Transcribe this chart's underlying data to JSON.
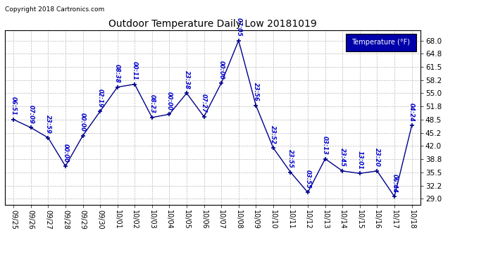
{
  "title": "Outdoor Temperature Daily Low 20181019",
  "copyright": "Copyright 2018 Cartronics.com",
  "legend_label": "Temperature (°F)",
  "dates": [
    "09/25",
    "09/26",
    "09/27",
    "09/28",
    "09/29",
    "09/30",
    "10/01",
    "10/02",
    "10/03",
    "10/04",
    "10/05",
    "10/06",
    "10/07",
    "10/08",
    "10/09",
    "10/10",
    "10/11",
    "10/12",
    "10/13",
    "10/14",
    "10/15",
    "10/16",
    "10/17",
    "10/18"
  ],
  "values": [
    48.5,
    46.5,
    44.0,
    37.0,
    44.5,
    50.5,
    56.5,
    57.2,
    49.0,
    49.8,
    55.0,
    49.2,
    57.5,
    68.0,
    52.0,
    41.5,
    35.5,
    30.5,
    38.8,
    35.8,
    35.2,
    35.8,
    29.5,
    47.0
  ],
  "times": [
    "06:51",
    "07:09",
    "23:59",
    "00:00",
    "00:00",
    "02:19",
    "08:38",
    "00:11",
    "08:23",
    "00:00",
    "23:38",
    "07:27",
    "00:00",
    "07:05",
    "23:56",
    "23:52",
    "23:55",
    "03:55",
    "03:13",
    "23:45",
    "13:01",
    "23:20",
    "06:44",
    "04:24"
  ],
  "yticks": [
    29.0,
    32.2,
    35.5,
    38.8,
    42.0,
    45.2,
    48.5,
    51.8,
    55.0,
    58.2,
    61.5,
    64.8,
    68.0
  ],
  "ylim": [
    27.5,
    70.5
  ],
  "line_color": "#00008b",
  "marker_color": "#00008b",
  "bg_color": "#ffffff",
  "grid_color": "#bbbbbb",
  "title_color": "#000000",
  "label_color": "#0000cc",
  "legend_bg": "#0000aa",
  "legend_fg": "#ffffff"
}
